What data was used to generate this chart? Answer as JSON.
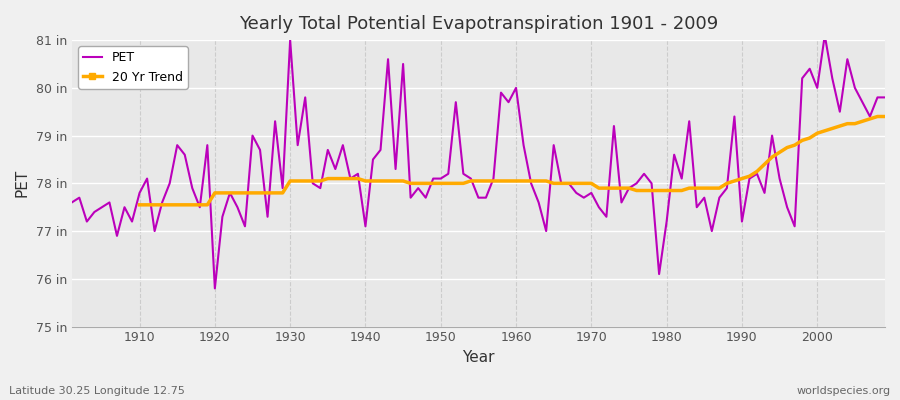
{
  "title": "Yearly Total Potential Evapotranspiration 1901 - 2009",
  "xlabel": "Year",
  "ylabel": "PET",
  "lat_lon_label": "Latitude 30.25 Longitude 12.75",
  "source_label": "worldspecies.org",
  "ylim": [
    75,
    81
  ],
  "yticks": [
    75,
    76,
    77,
    78,
    79,
    80,
    81
  ],
  "ytick_labels": [
    "75 in",
    "76 in",
    "77 in",
    "78 in",
    "79 in",
    "80 in",
    "81 in"
  ],
  "xticks": [
    1910,
    1920,
    1930,
    1940,
    1950,
    1960,
    1970,
    1980,
    1990,
    2000
  ],
  "years": [
    1901,
    1902,
    1903,
    1904,
    1905,
    1906,
    1907,
    1908,
    1909,
    1910,
    1911,
    1912,
    1913,
    1914,
    1915,
    1916,
    1917,
    1918,
    1919,
    1920,
    1921,
    1922,
    1923,
    1924,
    1925,
    1926,
    1927,
    1928,
    1929,
    1930,
    1931,
    1932,
    1933,
    1934,
    1935,
    1936,
    1937,
    1938,
    1939,
    1940,
    1941,
    1942,
    1943,
    1944,
    1945,
    1946,
    1947,
    1948,
    1949,
    1950,
    1951,
    1952,
    1953,
    1954,
    1955,
    1956,
    1957,
    1958,
    1959,
    1960,
    1961,
    1962,
    1963,
    1964,
    1965,
    1966,
    1967,
    1968,
    1969,
    1970,
    1971,
    1972,
    1973,
    1974,
    1975,
    1976,
    1977,
    1978,
    1979,
    1980,
    1981,
    1982,
    1983,
    1984,
    1985,
    1986,
    1987,
    1988,
    1989,
    1990,
    1991,
    1992,
    1993,
    1994,
    1995,
    1996,
    1997,
    1998,
    1999,
    2000,
    2001,
    2002,
    2003,
    2004,
    2005,
    2006,
    2007,
    2008,
    2009
  ],
  "pet": [
    77.6,
    77.7,
    77.2,
    77.4,
    77.5,
    77.6,
    76.9,
    77.5,
    77.2,
    77.8,
    78.1,
    77.0,
    77.6,
    78.0,
    78.8,
    78.6,
    77.9,
    77.5,
    78.8,
    75.8,
    77.3,
    77.8,
    77.5,
    77.1,
    79.0,
    78.7,
    77.3,
    79.3,
    77.9,
    81.0,
    78.8,
    79.8,
    78.0,
    77.9,
    78.7,
    78.3,
    78.8,
    78.1,
    78.2,
    77.1,
    78.5,
    78.7,
    80.6,
    78.3,
    80.5,
    77.7,
    77.9,
    77.7,
    78.1,
    78.1,
    78.2,
    79.7,
    78.2,
    78.1,
    77.7,
    77.7,
    78.1,
    79.9,
    79.7,
    80.0,
    78.8,
    78.0,
    77.6,
    77.0,
    78.8,
    78.0,
    78.0,
    77.8,
    77.7,
    77.8,
    77.5,
    77.3,
    79.2,
    77.6,
    77.9,
    78.0,
    78.2,
    78.0,
    76.1,
    77.2,
    78.6,
    78.1,
    79.3,
    77.5,
    77.7,
    77.0,
    77.7,
    77.9,
    79.4,
    77.2,
    78.1,
    78.2,
    77.8,
    79.0,
    78.1,
    77.5,
    77.1,
    80.2,
    80.4,
    80.0,
    81.1,
    80.2,
    79.5,
    80.6,
    80.0,
    79.7,
    79.4,
    79.8,
    79.8
  ],
  "trend_years": [
    1910,
    1911,
    1912,
    1913,
    1914,
    1915,
    1916,
    1917,
    1918,
    1919,
    1920,
    1921,
    1922,
    1923,
    1924,
    1925,
    1926,
    1927,
    1928,
    1929,
    1930,
    1931,
    1932,
    1933,
    1934,
    1935,
    1936,
    1937,
    1938,
    1939,
    1940,
    1941,
    1942,
    1943,
    1944,
    1945,
    1946,
    1947,
    1948,
    1949,
    1950,
    1951,
    1952,
    1953,
    1954,
    1955,
    1956,
    1957,
    1958,
    1959,
    1960,
    1961,
    1962,
    1963,
    1964,
    1965,
    1966,
    1967,
    1968,
    1969,
    1970,
    1971,
    1972,
    1973,
    1974,
    1975,
    1976,
    1977,
    1978,
    1979,
    1980,
    1981,
    1982,
    1983,
    1984,
    1985,
    1986,
    1987,
    1988,
    1989,
    1990,
    1991,
    1992,
    1993,
    1994,
    1995,
    1996,
    1997,
    1998,
    1999,
    2000,
    2001,
    2002,
    2003,
    2004,
    2005,
    2006,
    2007,
    2008,
    2009
  ],
  "trend": [
    77.55,
    77.55,
    77.55,
    77.55,
    77.55,
    77.55,
    77.55,
    77.55,
    77.55,
    77.55,
    77.8,
    77.8,
    77.8,
    77.8,
    77.8,
    77.8,
    77.8,
    77.8,
    77.8,
    77.8,
    78.05,
    78.05,
    78.05,
    78.05,
    78.05,
    78.1,
    78.1,
    78.1,
    78.1,
    78.1,
    78.05,
    78.05,
    78.05,
    78.05,
    78.05,
    78.05,
    78.0,
    78.0,
    78.0,
    78.0,
    78.0,
    78.0,
    78.0,
    78.0,
    78.05,
    78.05,
    78.05,
    78.05,
    78.05,
    78.05,
    78.05,
    78.05,
    78.05,
    78.05,
    78.05,
    78.0,
    78.0,
    78.0,
    78.0,
    78.0,
    78.0,
    77.9,
    77.9,
    77.9,
    77.9,
    77.9,
    77.85,
    77.85,
    77.85,
    77.85,
    77.85,
    77.85,
    77.85,
    77.9,
    77.9,
    77.9,
    77.9,
    77.9,
    78.0,
    78.05,
    78.1,
    78.15,
    78.25,
    78.4,
    78.55,
    78.65,
    78.75,
    78.8,
    78.9,
    78.95,
    79.05,
    79.1,
    79.15,
    79.2,
    79.25,
    79.25,
    79.3,
    79.35,
    79.4,
    79.4
  ],
  "pet_color": "#bb00bb",
  "trend_color": "#ffaa00",
  "fig_bg_color": "#f0f0f0",
  "plot_bg_color": "#e8e8e8",
  "legend_bg": "#ffffff",
  "hgrid_color": "#ffffff",
  "vgrid_color": "#cccccc"
}
